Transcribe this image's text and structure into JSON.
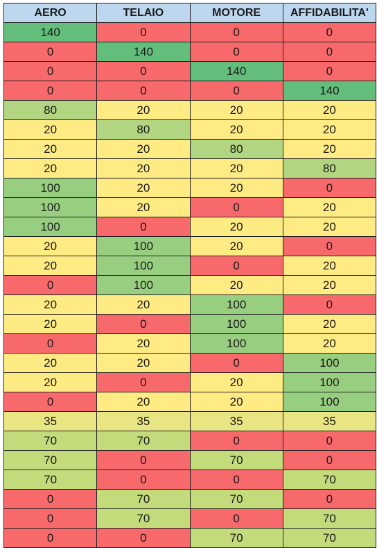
{
  "headers": [
    "AERO",
    "TELAIO",
    "MOTORE",
    "AFFIDABILITA'"
  ],
  "colors": {
    "v0": "#f8696b",
    "v20": "#ffeb84",
    "v35": "#e9e583",
    "v70": "#c4db7c",
    "v80": "#b1d580",
    "v100": "#98ce7f",
    "v140": "#63be7b",
    "header": "#bdd7ee"
  },
  "rows": [
    [
      "140",
      "0",
      "0",
      "0"
    ],
    [
      "0",
      "140",
      "0",
      "0"
    ],
    [
      "0",
      "0",
      "140",
      "0"
    ],
    [
      "0",
      "0",
      "0",
      "140"
    ],
    [
      "80",
      "20",
      "20",
      "20"
    ],
    [
      "20",
      "80",
      "20",
      "20"
    ],
    [
      "20",
      "20",
      "80",
      "20"
    ],
    [
      "20",
      "20",
      "20",
      "80"
    ],
    [
      "100",
      "20",
      "20",
      "0"
    ],
    [
      "100",
      "20",
      "0",
      "20"
    ],
    [
      "100",
      "0",
      "20",
      "20"
    ],
    [
      "20",
      "100",
      "20",
      "0"
    ],
    [
      "20",
      "100",
      "0",
      "20"
    ],
    [
      "0",
      "100",
      "20",
      "20"
    ],
    [
      "20",
      "20",
      "100",
      "0"
    ],
    [
      "20",
      "0",
      "100",
      "20"
    ],
    [
      "0",
      "20",
      "100",
      "20"
    ],
    [
      "20",
      "20",
      "0",
      "100"
    ],
    [
      "20",
      "0",
      "20",
      "100"
    ],
    [
      "0",
      "20",
      "20",
      "100"
    ],
    [
      "35",
      "35",
      "35",
      "35"
    ],
    [
      "70",
      "70",
      "0",
      "0"
    ],
    [
      "70",
      "0",
      "70",
      "0"
    ],
    [
      "70",
      "0",
      "0",
      "70"
    ],
    [
      "0",
      "70",
      "70",
      "0"
    ],
    [
      "0",
      "70",
      "0",
      "70"
    ],
    [
      "0",
      "0",
      "70",
      "70"
    ]
  ]
}
